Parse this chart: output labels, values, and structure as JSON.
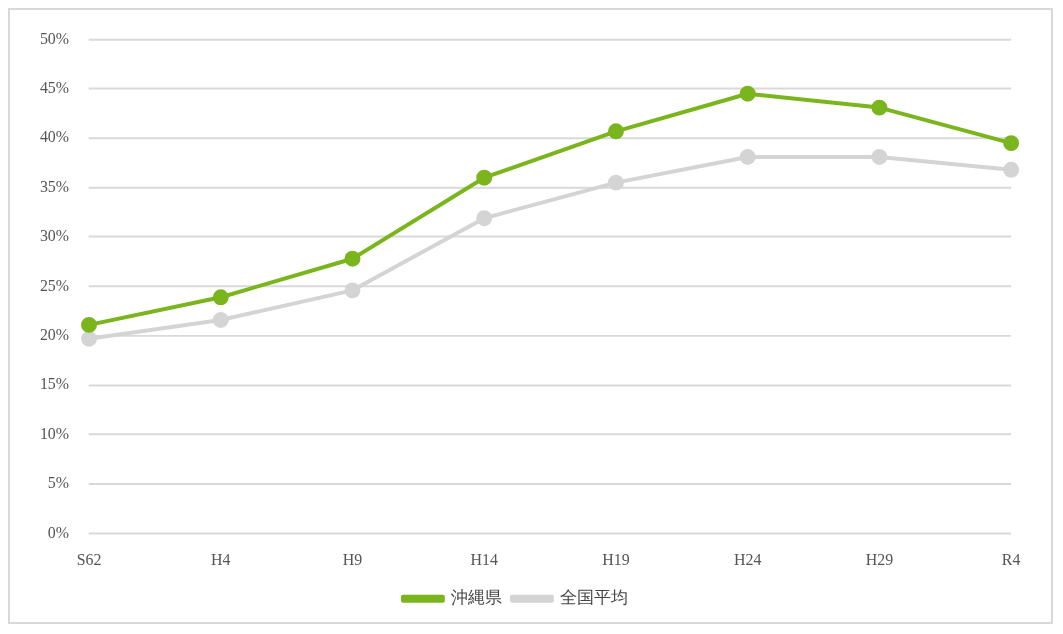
{
  "chart_data": {
    "type": "line",
    "categories": [
      "S62",
      "H4",
      "H9",
      "H14",
      "H19",
      "H24",
      "H29",
      "R4"
    ],
    "series": [
      {
        "name": "沖縄県",
        "color": "#7ab51d",
        "values": [
          21.1,
          23.9,
          27.8,
          36.0,
          40.7,
          44.5,
          43.1,
          39.5
        ]
      },
      {
        "name": "全国平均",
        "color": "#d4d4d4",
        "values": [
          19.7,
          21.6,
          24.6,
          31.9,
          35.5,
          38.1,
          38.1,
          36.8
        ]
      }
    ],
    "ylim": [
      0,
      50
    ],
    "yticks": [
      {
        "value": 0,
        "label": "0%"
      },
      {
        "value": 5,
        "label": "5%"
      },
      {
        "value": 10,
        "label": "10%"
      },
      {
        "value": 15,
        "label": "15%"
      },
      {
        "value": 20,
        "label": "20%"
      },
      {
        "value": 25,
        "label": "25%"
      },
      {
        "value": 30,
        "label": "30%"
      },
      {
        "value": 35,
        "label": "35%"
      },
      {
        "value": 40,
        "label": "40%"
      },
      {
        "value": 45,
        "label": "45%"
      },
      {
        "value": 50,
        "label": "50%"
      }
    ],
    "grid": "y",
    "legend": "bottom",
    "marker": "circle",
    "line_style": "solid"
  }
}
